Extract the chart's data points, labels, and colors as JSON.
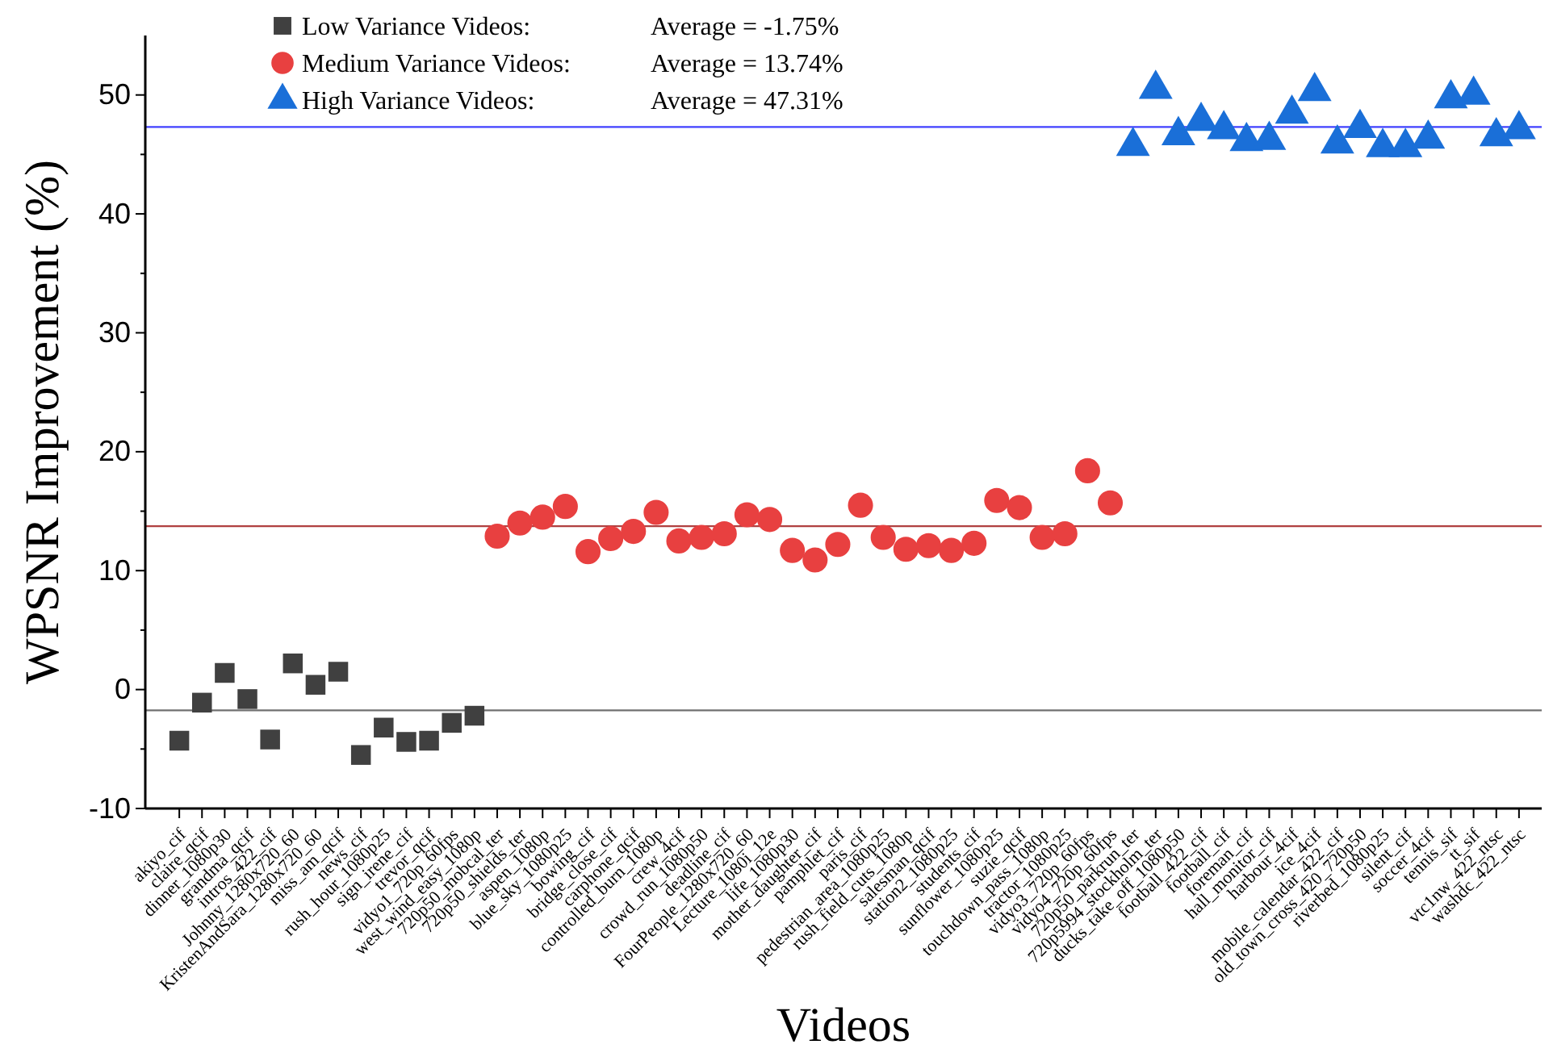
{
  "chart_data": {
    "type": "scatter",
    "xlabel": "Videos",
    "ylabel": "WPSNR Improvement (%)",
    "categories": [
      "akiyo_cif",
      "claire_qcif",
      "dinner_1080p30",
      "grandma_qcif",
      "intros_422_cif",
      "Johnny_1280x720_60",
      "KristenAndSara_1280x720_60",
      "miss_am_qcif",
      "news_cif",
      "rush_hour_1080p25",
      "sign_irene_cif",
      "trevor_qcif",
      "vidyo1_720p_60fps",
      "west_wind_easy_1080p",
      "720p50_mobcal_ter",
      "720p50_shields_ter",
      "aspen_1080p",
      "blue_sky_1080p25",
      "bowing_cif",
      "bridge_close_cif",
      "carphone_qcif",
      "controlled_burn_1080p",
      "crew_4cif",
      "crowd_run_1080p50",
      "deadline_cif",
      "FourPeople_1280x720_60",
      "Lecture_1080i_12e",
      "life_1080p30",
      "mother_daughter_cif",
      "pamphlet_cif",
      "paris_cif",
      "pedestrian_area_1080p25",
      "rush_field_cuts_1080p",
      "salesman_qcif",
      "station2_1080p25",
      "students_cif",
      "sunflower_1080p25",
      "suzie_qcif",
      "touchdown_pass_1080p",
      "tractor_1080p25",
      "vidyo3_720p_60fps",
      "vidyo4_720p_60fps",
      "720p50_parkrun_ter",
      "720p5994_stockholm_ter",
      "ducks_take_off_1080p50",
      "football_422_cif",
      "football_cif",
      "foreman_cif",
      "hall_monitor_cif",
      "harbour_4cif",
      "ice_4cif",
      "mobile_calendar_422_cif",
      "old_town_cross_420_720p50",
      "riverbed_1080p25",
      "silent_cif",
      "soccer_4cif",
      "tennis_sif",
      "tt_sif",
      "vtc1nw_422_ntsc",
      "washdc_422_ntsc"
    ],
    "series": [
      {
        "name": "Low Variance Videos:",
        "color": "#404040",
        "marker": "square",
        "values": [
          -4.3,
          -1.1,
          1.4,
          -0.8,
          -4.2,
          2.2,
          0.4,
          1.5,
          -5.5,
          -3.2,
          -4.4,
          -4.3,
          -2.8,
          -2.2,
          null,
          null,
          null,
          null,
          null,
          null,
          null,
          null,
          null,
          null,
          null,
          null,
          null,
          null,
          null,
          null,
          null,
          null,
          null,
          null,
          null,
          null,
          null,
          null,
          null,
          null,
          null,
          null,
          null,
          null,
          null,
          null,
          null,
          null,
          null,
          null,
          null,
          null,
          null,
          null,
          null,
          null,
          null,
          null,
          null,
          null
        ]
      },
      {
        "name": "Medium Variance Videos:",
        "color": "#e84040",
        "marker": "circle",
        "values": [
          null,
          null,
          null,
          null,
          null,
          null,
          null,
          null,
          null,
          null,
          null,
          null,
          null,
          null,
          12.9,
          14.0,
          14.5,
          15.4,
          11.6,
          12.7,
          13.3,
          14.9,
          12.5,
          12.8,
          13.1,
          14.7,
          14.3,
          11.7,
          10.9,
          12.2,
          15.5,
          12.8,
          11.8,
          12.1,
          11.7,
          12.3,
          15.9,
          15.3,
          12.8,
          13.1,
          18.4,
          15.7,
          null,
          null,
          null,
          null,
          null,
          null,
          null,
          null,
          null,
          null,
          null,
          null,
          null,
          null,
          null,
          null,
          null,
          null
        ]
      },
      {
        "name": "High Variance Videos:",
        "color": "#1a6fd8",
        "marker": "triangle",
        "values": [
          null,
          null,
          null,
          null,
          null,
          null,
          null,
          null,
          null,
          null,
          null,
          null,
          null,
          null,
          null,
          null,
          null,
          null,
          null,
          null,
          null,
          null,
          null,
          null,
          null,
          null,
          null,
          null,
          null,
          null,
          null,
          null,
          null,
          null,
          null,
          null,
          null,
          null,
          null,
          null,
          null,
          null,
          45.7,
          50.5,
          46.6,
          47.8,
          47.1,
          46.1,
          46.2,
          48.4,
          50.3,
          45.9,
          47.2,
          45.6,
          45.6,
          46.3,
          49.7,
          50.0,
          46.5,
          47.1
        ]
      }
    ],
    "ref_lines": [
      {
        "axis": "y",
        "value": -1.75,
        "color": "#707070"
      },
      {
        "axis": "y",
        "value": 13.74,
        "color": "#b04040"
      },
      {
        "axis": "y",
        "value": 47.31,
        "color": "#4040ff"
      }
    ],
    "annotations": [
      "Average = -1.75%",
      "Average = 13.74%",
      "Average = 47.31%"
    ],
    "ylim": [
      -10,
      55
    ],
    "yticks": [
      -10,
      0,
      10,
      20,
      30,
      40,
      50
    ],
    "grid": false,
    "legend": "top"
  }
}
